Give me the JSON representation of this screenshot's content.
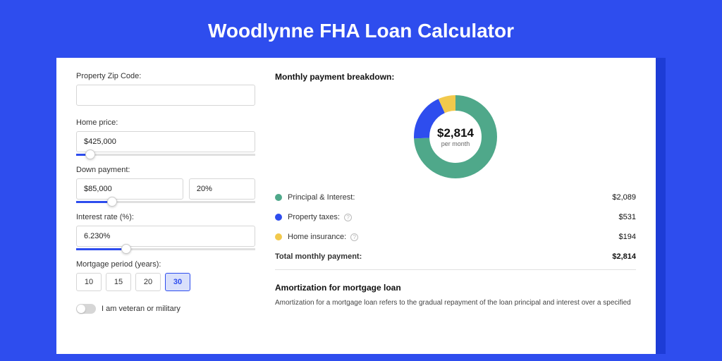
{
  "header": {
    "title": "Woodlynne FHA Loan Calculator"
  },
  "colors": {
    "page_bg": "#2e4dee",
    "shadow_bg": "#1d3cd6",
    "panel_bg": "#ffffff",
    "slice_pi": "#4fa88a",
    "slice_tax": "#2e4dee",
    "slice_ins": "#f2c94c",
    "donut_track": "#eeeeee"
  },
  "form": {
    "zip": {
      "label": "Property Zip Code:",
      "value": ""
    },
    "home_price": {
      "label": "Home price:",
      "value": "$425,000",
      "slider_pct": 8
    },
    "down_payment": {
      "label": "Down payment:",
      "amount": "$85,000",
      "percent": "20%",
      "slider_pct": 20
    },
    "interest": {
      "label": "Interest rate (%):",
      "value": "6.230%",
      "slider_pct": 28
    },
    "mortgage_period": {
      "label": "Mortgage period (years):",
      "options": [
        "10",
        "15",
        "20",
        "30"
      ],
      "selected": "30"
    },
    "veteran": {
      "label": "I am veteran or military",
      "checked": false
    }
  },
  "breakdown": {
    "title": "Monthly payment breakdown:",
    "center_amount": "$2,814",
    "center_sub": "per month",
    "items": [
      {
        "label": "Principal & Interest:",
        "value": "$2,089",
        "pct": 74.2,
        "info": false
      },
      {
        "label": "Property taxes:",
        "value": "$531",
        "pct": 18.9,
        "info": true
      },
      {
        "label": "Home insurance:",
        "value": "$194",
        "pct": 6.9,
        "info": true
      }
    ],
    "total": {
      "label": "Total monthly payment:",
      "value": "$2,814"
    }
  },
  "amortization": {
    "title": "Amortization for mortgage loan",
    "text": "Amortization for a mortgage loan refers to the gradual repayment of the loan principal and interest over a specified"
  },
  "donut": {
    "radius": 48,
    "stroke": 22,
    "segments_deg": [
      267.2,
      68.0,
      24.8
    ]
  }
}
